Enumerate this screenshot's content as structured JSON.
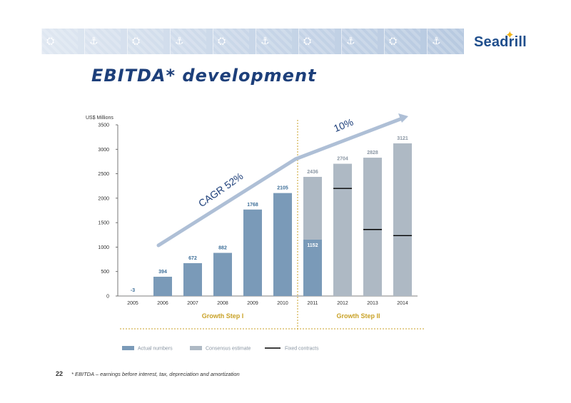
{
  "page": {
    "title": "EBITDA* development",
    "brand": "Seadrill",
    "slide_number": "22",
    "footnote": "* EBITDA – earnings before interest, tax, depreciation and amortization"
  },
  "chart_data": {
    "type": "bar",
    "unit_label": "US$ Millions",
    "categories": [
      "2005",
      "2006",
      "2007",
      "2008",
      "2009",
      "2010",
      "2011",
      "2012",
      "2013",
      "2014"
    ],
    "ylim": [
      0,
      3500
    ],
    "yticks": [
      0,
      500,
      1000,
      1500,
      2000,
      2500,
      3000,
      3500
    ],
    "series": [
      {
        "name": "Actual numbers",
        "color": "#7a9ab8",
        "values": [
          -3,
          394,
          672,
          882,
          1768,
          2105,
          1152,
          null,
          null,
          null
        ],
        "labels": [
          "-3",
          "394",
          "672",
          "882",
          "1768",
          "2105",
          "1152",
          "",
          "",
          ""
        ]
      },
      {
        "name": "Consensus estimate",
        "color": "#aeb9c4",
        "values": [
          null,
          null,
          null,
          null,
          null,
          null,
          2436,
          2704,
          2828,
          3121
        ],
        "labels": [
          "",
          "",
          "",
          "",
          "",
          "",
          "2436",
          "2704",
          "2828",
          "3121"
        ]
      },
      {
        "name": "Fixed contracts",
        "color": "#000000",
        "values": [
          null,
          null,
          null,
          null,
          null,
          null,
          null,
          2200,
          1360,
          1235
        ]
      }
    ],
    "annotations": {
      "cagr_label": "CAGR 52%",
      "growth_rate_label": "10%",
      "trend_color": "#aebfd6",
      "growth_steps": [
        "Growth Step I",
        "Growth Step II"
      ],
      "step_color": "#c9a227"
    },
    "legend": [
      "Actual numbers",
      "Consensus estimate",
      "Fixed contracts"
    ],
    "legend_position": "bottom",
    "grid": false
  }
}
